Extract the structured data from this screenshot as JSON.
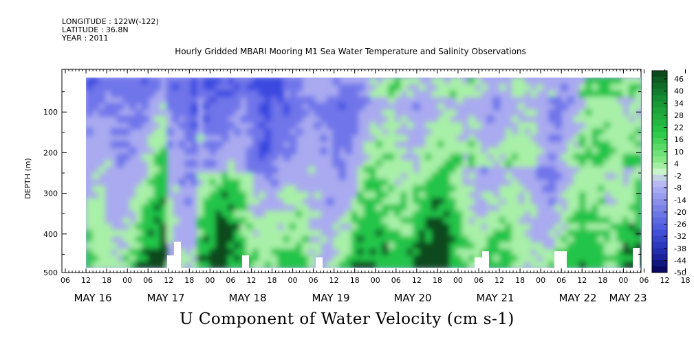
{
  "header": {
    "longitude": "LONGITUDE : 122W(-122)",
    "latitude": "LATITUDE : 36.8N",
    "year": "YEAR : 2011"
  },
  "chart_data": {
    "type": "heatmap",
    "title": "Hourly Gridded MBARI Mooring M1 Sea Water Temperature and Salinity Observations",
    "variable": "U Component of Water Velocity (cm s-1)",
    "ylabel": "DEPTH (m)",
    "ylim": [
      500,
      0
    ],
    "y_ticks": [
      100,
      200,
      300,
      400,
      500
    ],
    "x_hour_ticks": [
      "06",
      "12",
      "18",
      "00",
      "06",
      "12",
      "18",
      "00",
      "06",
      "12",
      "18",
      "00",
      "06",
      "12",
      "18",
      "00",
      "06",
      "12",
      "18",
      "00",
      "06",
      "12",
      "18",
      "00",
      "06",
      "12",
      "18",
      "00",
      "06",
      "12",
      "18",
      "00",
      "06"
    ],
    "x_date_labels": [
      "MAY 16",
      "MAY 17",
      "MAY 18",
      "MAY 19",
      "MAY 20",
      "MAY 21",
      "MAY 22",
      "MAY 23"
    ],
    "colorbar_levels": [
      "46",
      "40",
      "34",
      "28",
      "22",
      "16",
      "10",
      "4",
      "-2",
      "-8",
      "-14",
      "-20",
      "-26",
      "-32",
      "-38",
      "-44",
      "-50"
    ],
    "colors": {
      "strong_positive": "#0a4a1a",
      "positive": "#22c44a",
      "weak_positive": "#a8f0a8",
      "weak_negative": "#a9aaf0",
      "negative": "#3a48e0",
      "strong_negative": "#0a0a6a"
    }
  }
}
